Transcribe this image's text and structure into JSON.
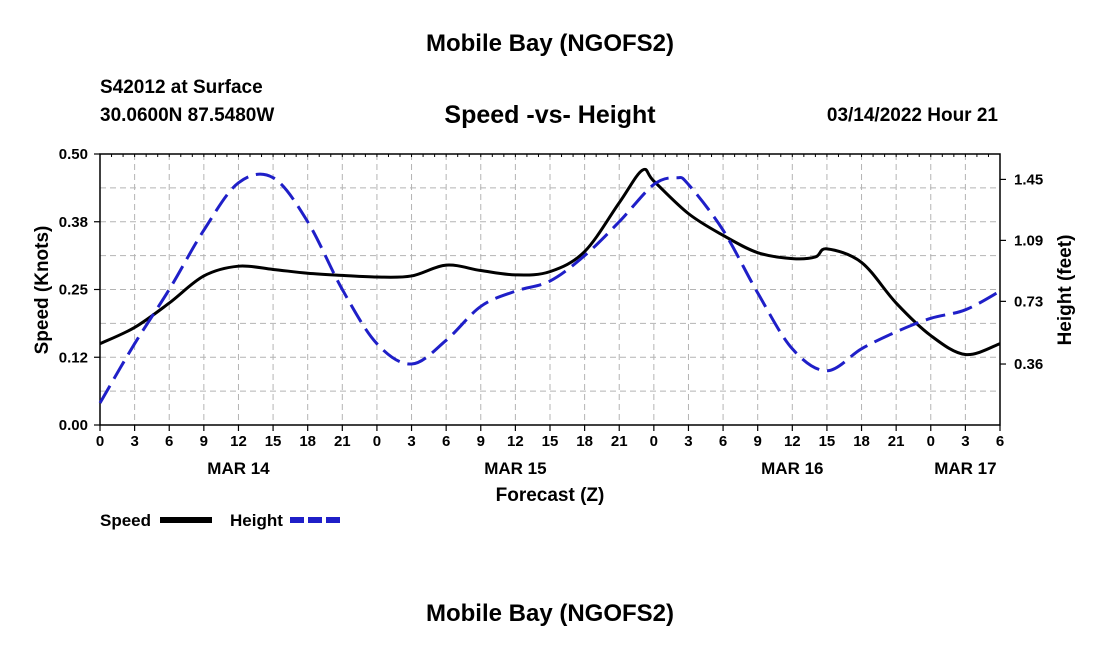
{
  "header": {
    "title": "Mobile Bay (NGOFS2)",
    "station": "S42012 at Surface",
    "coords": "30.0600N  87.5480W",
    "subtitle": "Speed -vs- Height",
    "datetime": "03/14/2022 Hour 21"
  },
  "footer": {
    "title": "Mobile Bay (NGOFS2)"
  },
  "colors": {
    "speed": "#000000",
    "height": "#1f1fc8",
    "grid": "#b4b4b4"
  },
  "chart_data": {
    "type": "line",
    "xlabel": "Forecast (Z)",
    "ylabel_left": "Speed (Knots)",
    "ylabel_right": "Height (feet)",
    "ylim_left": [
      0,
      0.5
    ],
    "ylim_right": [
      0,
      1.6
    ],
    "xlim_hours": [
      0,
      78
    ],
    "x_unit": "forecast hour from MAR 14 00Z",
    "x_ticks": [
      {
        "h": 0,
        "label": "0"
      },
      {
        "h": 3,
        "label": "3"
      },
      {
        "h": 6,
        "label": "6"
      },
      {
        "h": 9,
        "label": "9"
      },
      {
        "h": 12,
        "label": "12"
      },
      {
        "h": 15,
        "label": "15"
      },
      {
        "h": 18,
        "label": "18"
      },
      {
        "h": 21,
        "label": "21"
      },
      {
        "h": 24,
        "label": "0"
      },
      {
        "h": 27,
        "label": "3"
      },
      {
        "h": 30,
        "label": "6"
      },
      {
        "h": 33,
        "label": "9"
      },
      {
        "h": 36,
        "label": "12"
      },
      {
        "h": 39,
        "label": "15"
      },
      {
        "h": 42,
        "label": "18"
      },
      {
        "h": 45,
        "label": "21"
      },
      {
        "h": 48,
        "label": "0"
      },
      {
        "h": 51,
        "label": "3"
      },
      {
        "h": 54,
        "label": "6"
      },
      {
        "h": 57,
        "label": "9"
      },
      {
        "h": 60,
        "label": "12"
      },
      {
        "h": 63,
        "label": "15"
      },
      {
        "h": 66,
        "label": "18"
      },
      {
        "h": 69,
        "label": "21"
      },
      {
        "h": 72,
        "label": "0"
      },
      {
        "h": 75,
        "label": "3"
      },
      {
        "h": 78,
        "label": "6"
      }
    ],
    "date_labels": [
      {
        "h": 12,
        "label": "MAR 14"
      },
      {
        "h": 36,
        "label": "MAR 15"
      },
      {
        "h": 60,
        "label": "MAR 16"
      },
      {
        "h": 75,
        "label": "MAR 17"
      }
    ],
    "y_ticks_left": [
      {
        "v": 0.0,
        "label": "0.00"
      },
      {
        "v": 0.125,
        "label": "0.12"
      },
      {
        "v": 0.25,
        "label": "0.25"
      },
      {
        "v": 0.375,
        "label": "0.38"
      },
      {
        "v": 0.5,
        "label": "0.50"
      }
    ],
    "y_ticks_right": [
      {
        "v": 0.36,
        "label": "0.36"
      },
      {
        "v": 0.73,
        "label": "0.73"
      },
      {
        "v": 1.09,
        "label": "1.09"
      },
      {
        "v": 1.45,
        "label": "1.45"
      }
    ],
    "grid": true,
    "series": [
      {
        "name": "Speed",
        "axis": "left",
        "style": "solid",
        "x": [
          0,
          3,
          6,
          9,
          12,
          15,
          18,
          21,
          24,
          27,
          30,
          33,
          36,
          39,
          42,
          45,
          47,
          48,
          51,
          54,
          57,
          60,
          62,
          63,
          66,
          69,
          72,
          75,
          78
        ],
        "y": [
          0.15,
          0.18,
          0.225,
          0.275,
          0.293,
          0.287,
          0.28,
          0.276,
          0.273,
          0.275,
          0.295,
          0.285,
          0.277,
          0.283,
          0.32,
          0.41,
          0.47,
          0.45,
          0.39,
          0.35,
          0.318,
          0.307,
          0.31,
          0.325,
          0.3,
          0.225,
          0.165,
          0.13,
          0.15
        ]
      },
      {
        "name": "Height",
        "axis": "right",
        "style": "dashed",
        "x": [
          0,
          3,
          6,
          9,
          12,
          15,
          18,
          21,
          24,
          27,
          30,
          33,
          36,
          39,
          42,
          45,
          48,
          50,
          51,
          54,
          57,
          60,
          63,
          66,
          69,
          72,
          75,
          78
        ],
        "y": [
          0.13,
          0.48,
          0.8,
          1.15,
          1.43,
          1.46,
          1.2,
          0.8,
          0.48,
          0.36,
          0.5,
          0.7,
          0.79,
          0.85,
          1.0,
          1.2,
          1.42,
          1.46,
          1.42,
          1.15,
          0.78,
          0.45,
          0.32,
          0.45,
          0.55,
          0.63,
          0.68,
          0.79
        ]
      }
    ]
  }
}
